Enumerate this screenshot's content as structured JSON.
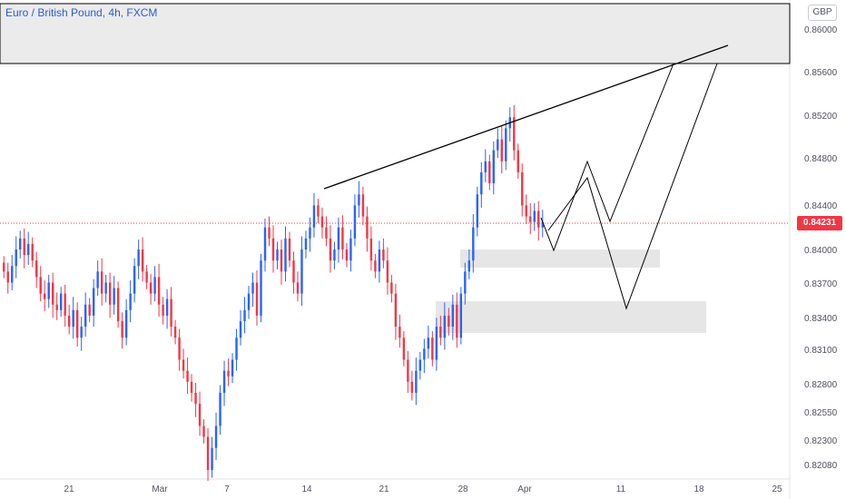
{
  "chart_data": {
    "type": "candlestick",
    "title": "Euro / British Pound, 4h, FXCM",
    "currency": "GBP",
    "current_price": "0.84231",
    "ylim": [
      0.82,
      0.863
    ],
    "y_ticks": [
      "0.86000",
      "0.85600",
      "0.85200",
      "0.84800",
      "0.84400",
      "0.84000",
      "0.83700",
      "0.83400",
      "0.83100",
      "0.82800",
      "0.82550",
      "0.82300",
      "0.82080"
    ],
    "x_ticks": [
      "21",
      "Mar",
      "7",
      "14",
      "21",
      "28",
      "Apr",
      "11",
      "18",
      "25"
    ],
    "colors": {
      "up": "#2962ff",
      "down": "#f23645",
      "current_price": "#f23645"
    },
    "candles_close_series": [
      0.838,
      0.837,
      0.8385,
      0.84,
      0.841,
      0.8395,
      0.8405,
      0.839,
      0.8375,
      0.836,
      0.8355,
      0.837,
      0.835,
      0.8345,
      0.836,
      0.834,
      0.833,
      0.8345,
      0.832,
      0.833,
      0.835,
      0.834,
      0.8365,
      0.838,
      0.836,
      0.837,
      0.835,
      0.8365,
      0.8335,
      0.832,
      0.8345,
      0.836,
      0.8385,
      0.84,
      0.838,
      0.837,
      0.836,
      0.8375,
      0.835,
      0.834,
      0.8355,
      0.833,
      0.832,
      0.83,
      0.829,
      0.828,
      0.827,
      0.826,
      0.824,
      0.823,
      0.82,
      0.822,
      0.824,
      0.827,
      0.829,
      0.8285,
      0.83,
      0.832,
      0.8335,
      0.8345,
      0.836,
      0.837,
      0.834,
      0.839,
      0.842,
      0.841,
      0.839,
      0.84,
      0.838,
      0.841,
      0.839,
      0.837,
      0.836,
      0.84,
      0.841,
      0.842,
      0.844,
      0.843,
      0.842,
      0.841,
      0.839,
      0.84,
      0.842,
      0.84,
      0.839,
      0.841,
      0.844,
      0.845,
      0.843,
      0.841,
      0.839,
      0.838,
      0.84,
      0.839,
      0.837,
      0.836,
      0.833,
      0.832,
      0.83,
      0.828,
      0.827,
      0.829,
      0.83,
      0.831,
      0.832,
      0.83,
      0.833,
      0.832,
      0.834,
      0.833,
      0.835,
      0.832,
      0.836,
      0.838,
      0.839,
      0.842,
      0.845,
      0.847,
      0.848,
      0.846,
      0.849,
      0.85,
      0.848,
      0.851,
      0.852,
      0.849,
      0.847,
      0.844,
      0.843,
      0.8425,
      0.8435,
      0.842,
      0.8425
    ],
    "zones": [
      {
        "name": "resistance-zone",
        "price_from": 0.8568,
        "price_to": 0.863
      },
      {
        "name": "support-zone-1",
        "price_from": 0.8385,
        "price_to": 0.84
      },
      {
        "name": "support-zone-2",
        "price_from": 0.8325,
        "price_to": 0.835
      }
    ]
  }
}
